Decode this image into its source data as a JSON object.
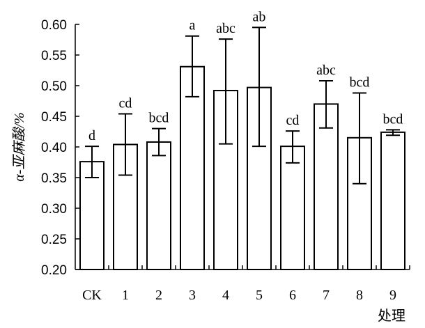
{
  "chart_data": {
    "type": "bar",
    "categories": [
      "CK",
      "1",
      "2",
      "3",
      "4",
      "5",
      "6",
      "7",
      "8",
      "9"
    ],
    "values": [
      0.376,
      0.404,
      0.408,
      0.531,
      0.492,
      0.497,
      0.401,
      0.47,
      0.415,
      0.424
    ],
    "error_upper": [
      0.401,
      0.454,
      0.43,
      0.581,
      0.576,
      0.595,
      0.426,
      0.508,
      0.488,
      0.428
    ],
    "error_lower": [
      0.35,
      0.354,
      0.386,
      0.482,
      0.405,
      0.401,
      0.374,
      0.431,
      0.34,
      0.419
    ],
    "significance": [
      "d",
      "cd",
      "bcd",
      "a",
      "abc",
      "ab",
      "cd",
      "abc",
      "bcd",
      "bcd"
    ],
    "xlabel": "处理",
    "ylabel": "α-亚麻酸/%",
    "ylim": [
      0.2,
      0.6
    ],
    "yticks": [
      "0.20",
      "0.25",
      "0.30",
      "0.35",
      "0.40",
      "0.45",
      "0.50",
      "0.55",
      "0.60"
    ],
    "grid": false,
    "legend": "none",
    "colors": {
      "bar_fill": "#ffffff",
      "bar_stroke": "#000000",
      "axis": "#000000"
    }
  }
}
